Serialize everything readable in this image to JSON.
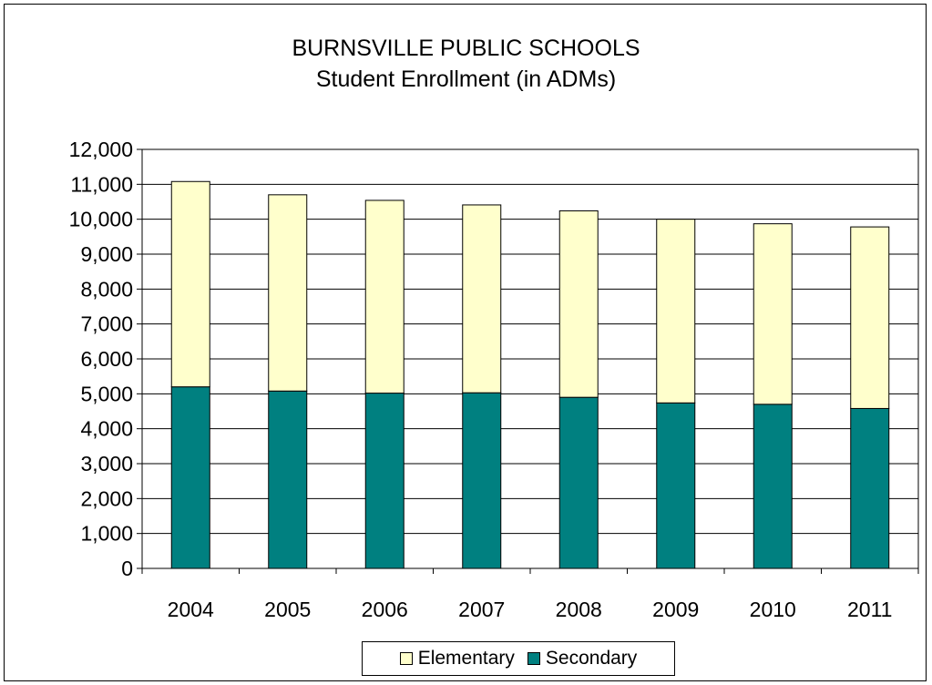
{
  "chart_data": {
    "type": "bar",
    "stacked": true,
    "title": "BURNSVILLE PUBLIC SCHOOLS",
    "subtitle": "Student Enrollment (in ADMs)",
    "categories": [
      "2004",
      "2005",
      "2006",
      "2007",
      "2008",
      "2009",
      "2010",
      "2011"
    ],
    "series": [
      {
        "name": "Secondary",
        "color": "#008080",
        "values": [
          5200,
          5080,
          5020,
          5030,
          4900,
          4740,
          4700,
          4580
        ]
      },
      {
        "name": "Elementary",
        "color": "#FFFFCC",
        "values": [
          5880,
          5620,
          5520,
          5380,
          5340,
          5260,
          5170,
          5200
        ]
      }
    ],
    "ylim": [
      0,
      12000
    ],
    "yticks": [
      "0",
      "1,000",
      "2,000",
      "3,000",
      "4,000",
      "5,000",
      "6,000",
      "7,000",
      "8,000",
      "9,000",
      "10,000",
      "11,000",
      "12,000"
    ],
    "ytick_values": [
      0,
      1000,
      2000,
      3000,
      4000,
      5000,
      6000,
      7000,
      8000,
      9000,
      10000,
      11000,
      12000
    ],
    "grid": true,
    "legend_position": "bottom",
    "legend_order": [
      "Elementary",
      "Secondary"
    ]
  }
}
